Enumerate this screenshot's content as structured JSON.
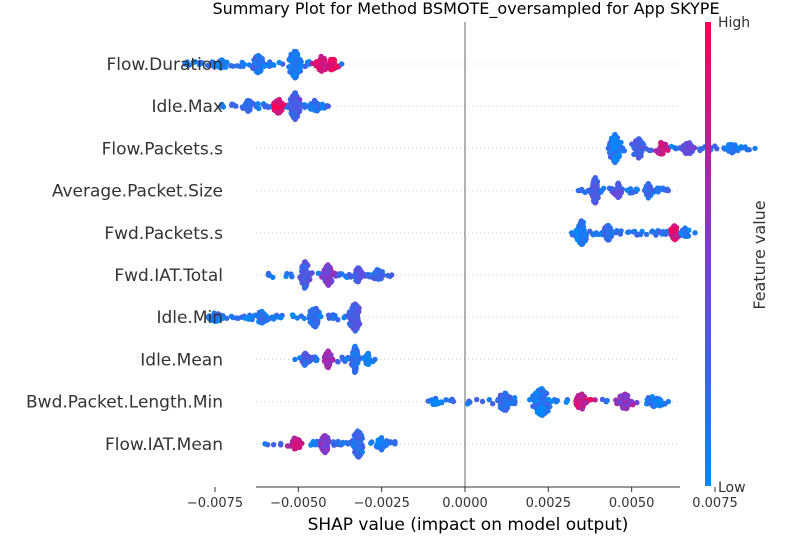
{
  "chart_data": {
    "type": "scatter",
    "subtype": "shap-beeswarm-summary",
    "title": "Summary Plot for Method BSMOTE_oversampled for App SKYPE",
    "xlabel": "SHAP value (impact on model output)",
    "xlim": [
      -0.0093,
      0.0093
    ],
    "x_ticks": [
      -0.0075,
      -0.005,
      -0.0025,
      0.0,
      0.0025,
      0.005,
      0.0075
    ],
    "x_tick_labels": [
      "−0.0075",
      "−0.0050",
      "−0.0025",
      "0.0000",
      "0.0025",
      "0.0050",
      "0.0075"
    ],
    "zero_line": 0.0,
    "colorbar": {
      "title": "Feature value",
      "high_label": "High",
      "low_label": "Low",
      "low_color": "#008afb",
      "high_color": "#ff0052"
    },
    "features": [
      {
        "name": "Flow.Duration",
        "range": [
          -0.0084,
          -0.0037
        ],
        "clusters": [
          {
            "x": -0.0051,
            "density": 9,
            "value": 0.1
          },
          {
            "x": -0.0062,
            "density": 5,
            "value": 0.15
          },
          {
            "x": -0.0043,
            "density": 4,
            "value": 0.85
          },
          {
            "x": -0.004,
            "density": 3,
            "value": 0.95
          },
          {
            "x": -0.0073,
            "density": 2,
            "value": 0.1
          }
        ]
      },
      {
        "name": "Idle.Max",
        "range": [
          -0.0073,
          -0.0041
        ],
        "clusters": [
          {
            "x": -0.0051,
            "density": 9,
            "value": 0.3
          },
          {
            "x": -0.0056,
            "density": 4,
            "value": 0.9
          },
          {
            "x": -0.0065,
            "density": 3,
            "value": 0.2
          },
          {
            "x": -0.0045,
            "density": 3,
            "value": 0.15
          }
        ]
      },
      {
        "name": "Flow.Packets.s",
        "range": [
          0.0043,
          0.0087
        ],
        "clusters": [
          {
            "x": 0.0045,
            "density": 10,
            "value": 0.1
          },
          {
            "x": 0.0052,
            "density": 6,
            "value": 0.3
          },
          {
            "x": 0.0059,
            "density": 3,
            "value": 0.8
          },
          {
            "x": 0.0067,
            "density": 3,
            "value": 0.4
          },
          {
            "x": 0.008,
            "density": 2,
            "value": 0.1
          }
        ]
      },
      {
        "name": "Average.Packet.Size",
        "range": [
          0.0034,
          0.0061
        ],
        "clusters": [
          {
            "x": 0.0039,
            "density": 8,
            "value": 0.3
          },
          {
            "x": 0.0046,
            "density": 4,
            "value": 0.35
          },
          {
            "x": 0.0055,
            "density": 4,
            "value": 0.2
          }
        ]
      },
      {
        "name": "Fwd.Packets.s",
        "range": [
          0.0032,
          0.0069
        ],
        "clusters": [
          {
            "x": 0.0035,
            "density": 8,
            "value": 0.1
          },
          {
            "x": 0.0043,
            "density": 4,
            "value": 0.2
          },
          {
            "x": 0.0063,
            "density": 4,
            "value": 0.85
          },
          {
            "x": 0.0066,
            "density": 2,
            "value": 0.1
          }
        ]
      },
      {
        "name": "Fwd.IAT.Total",
        "range": [
          -0.0059,
          -0.0022
        ],
        "clusters": [
          {
            "x": -0.0048,
            "density": 8,
            "value": 0.3
          },
          {
            "x": -0.0041,
            "density": 6,
            "value": 0.5
          },
          {
            "x": -0.0032,
            "density": 4,
            "value": 0.35
          },
          {
            "x": -0.0026,
            "density": 3,
            "value": 0.2
          }
        ]
      },
      {
        "name": "Idle.Min",
        "range": [
          -0.0077,
          -0.0033
        ],
        "clusters": [
          {
            "x": -0.0033,
            "density": 9,
            "value": 0.3
          },
          {
            "x": -0.0045,
            "density": 6,
            "value": 0.2
          },
          {
            "x": -0.0061,
            "density": 3,
            "value": 0.15
          },
          {
            "x": -0.0075,
            "density": 2,
            "value": 0.1
          }
        ]
      },
      {
        "name": "Idle.Mean",
        "range": [
          -0.0051,
          -0.0027
        ],
        "clusters": [
          {
            "x": -0.0033,
            "density": 8,
            "value": 0.15
          },
          {
            "x": -0.0041,
            "density": 5,
            "value": 0.6
          },
          {
            "x": -0.0048,
            "density": 3,
            "value": 0.25
          },
          {
            "x": -0.0029,
            "density": 3,
            "value": 0.1
          }
        ]
      },
      {
        "name": "Bwd.Packet.Length.Min",
        "range": [
          -0.0009,
          0.0061
        ],
        "clusters": [
          {
            "x": 0.0023,
            "density": 9,
            "value": 0.1
          },
          {
            "x": 0.0012,
            "density": 5,
            "value": 0.2
          },
          {
            "x": 0.0035,
            "density": 4,
            "value": 0.8
          },
          {
            "x": 0.0048,
            "density": 4,
            "value": 0.6
          },
          {
            "x": 0.0057,
            "density": 3,
            "value": 0.1
          },
          {
            "x": -0.0009,
            "density": 1,
            "value": 0.05
          }
        ]
      },
      {
        "name": "Flow.IAT.Mean",
        "range": [
          -0.006,
          -0.0021
        ],
        "clusters": [
          {
            "x": -0.0032,
            "density": 9,
            "value": 0.2
          },
          {
            "x": -0.0042,
            "density": 5,
            "value": 0.5
          },
          {
            "x": -0.0051,
            "density": 3,
            "value": 0.8
          },
          {
            "x": -0.0025,
            "density": 3,
            "value": 0.1
          }
        ]
      }
    ]
  }
}
